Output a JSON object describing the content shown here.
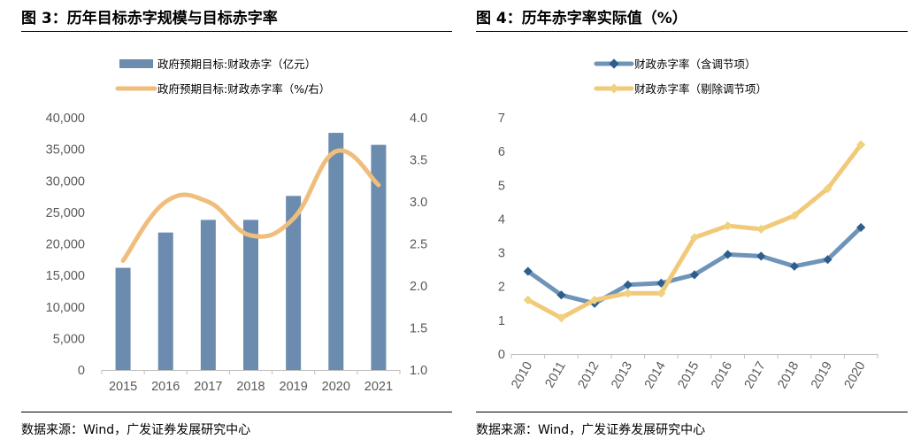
{
  "figure3": {
    "title": "图  3：历年目标赤字规模与目标赤字率",
    "source": "数据来源：Wind，广发证券发展研究中心"
  },
  "figure4": {
    "title": "图  4：历年赤字率实际值（%）",
    "source": "数据来源：Wind，广发证券发展研究中心"
  },
  "colors": {
    "bar": "#6B8CAE",
    "line_orange": "#F0BE7C",
    "line_blue": "#6E94B8",
    "marker_blue": "#2E5E8C",
    "line_yellow": "#F2C979",
    "marker_yellow": "#EED27E",
    "axis": "#BFBFBF",
    "tick_text": "#595959"
  },
  "chart_data": [
    {
      "type": "bar",
      "title": "历年目标赤字规模与目标赤字率",
      "categories": [
        "2015",
        "2016",
        "2017",
        "2018",
        "2019",
        "2020",
        "2021"
      ],
      "series": [
        {
          "name": "政府预期目标:财政赤字（亿元）",
          "kind": "bar",
          "axis": "left",
          "values": [
            16200,
            21800,
            23800,
            23800,
            27600,
            37600,
            35700
          ]
        },
        {
          "name": "政府预期目标:财政赤字率（%/右）",
          "kind": "line",
          "axis": "right",
          "values": [
            2.3,
            3.0,
            3.0,
            2.6,
            2.8,
            3.6,
            3.2
          ]
        }
      ],
      "ylim_left": [
        0,
        40000
      ],
      "yticks_left": [
        "0",
        "5,000",
        "10,000",
        "15,000",
        "20,000",
        "25,000",
        "30,000",
        "35,000",
        "40,000"
      ],
      "ylim_right": [
        1.0,
        4.0
      ],
      "yticks_right": [
        "1.0",
        "1.5",
        "2.0",
        "2.5",
        "3.0",
        "3.5",
        "4.0"
      ],
      "legend_position": "top-center",
      "grid": false
    },
    {
      "type": "line",
      "title": "历年赤字率实际值（%）",
      "categories": [
        "2010",
        "2011",
        "2012",
        "2013",
        "2014",
        "2015",
        "2016",
        "2017",
        "2018",
        "2019",
        "2020"
      ],
      "series": [
        {
          "name": "财政赤字率（含调节项）",
          "values": [
            2.45,
            1.75,
            1.5,
            2.05,
            2.1,
            2.35,
            2.95,
            2.9,
            2.6,
            2.8,
            3.75
          ]
        },
        {
          "name": "财政赤字率（剔除调节项）",
          "values": [
            1.6,
            1.07,
            1.6,
            1.8,
            1.8,
            3.45,
            3.8,
            3.7,
            4.1,
            4.9,
            6.2
          ]
        }
      ],
      "ylim": [
        0,
        7
      ],
      "yticks": [
        "0",
        "1",
        "2",
        "3",
        "4",
        "5",
        "6",
        "7"
      ],
      "legend_position": "top-center",
      "grid": false
    }
  ]
}
